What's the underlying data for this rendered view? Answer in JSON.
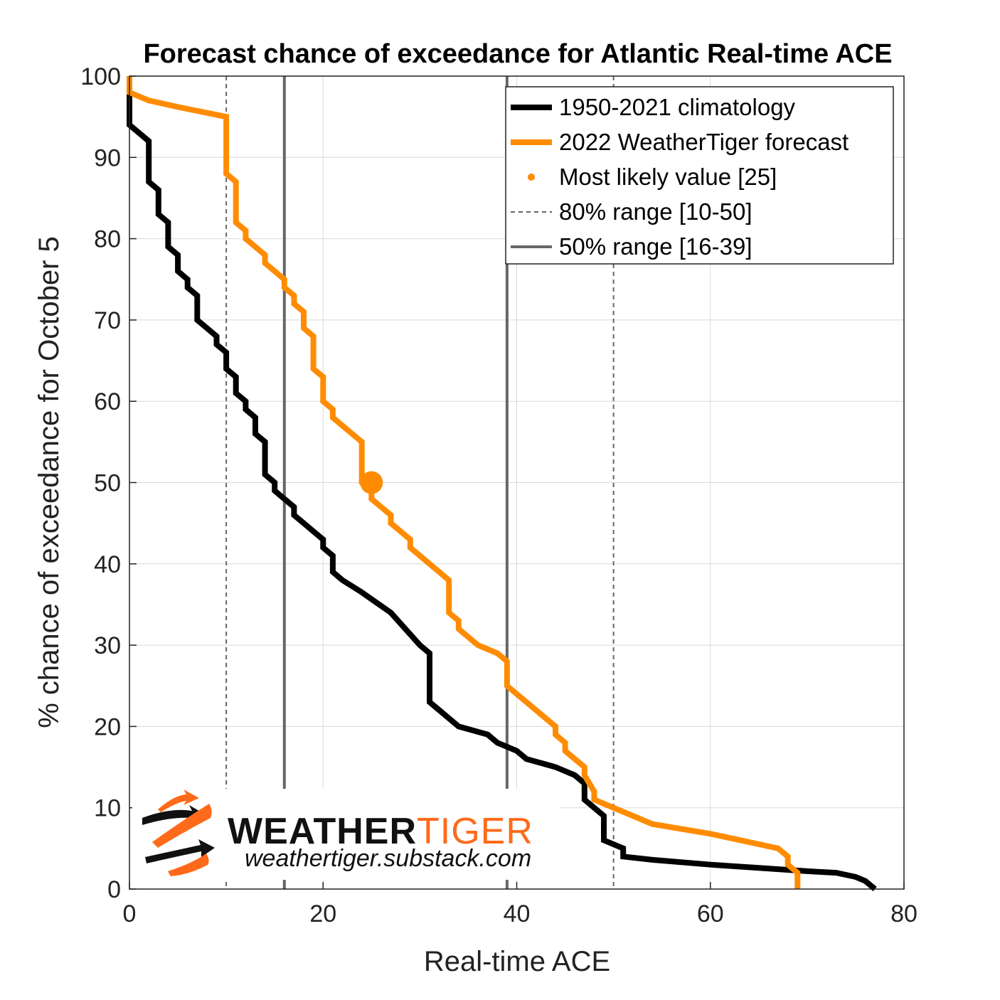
{
  "chart_data": {
    "type": "line",
    "title": "Forecast chance of exceedance for Atlantic Real-time ACE",
    "xlabel": "Real-time ACE",
    "ylabel": "% chance of exceedance for October 5",
    "xlim": [
      0,
      80
    ],
    "ylim": [
      0,
      100
    ],
    "xticks": [
      0,
      20,
      40,
      60,
      80
    ],
    "yticks": [
      0,
      10,
      20,
      30,
      40,
      50,
      60,
      70,
      80,
      90,
      100
    ],
    "grid": true,
    "legend_position": "top-right",
    "series": [
      {
        "name": "1950-2021 climatology",
        "color": "#000000",
        "points": [
          [
            0,
            98
          ],
          [
            0,
            94
          ],
          [
            1,
            93
          ],
          [
            2,
            92
          ],
          [
            2,
            87
          ],
          [
            3,
            86
          ],
          [
            3,
            83
          ],
          [
            4,
            82
          ],
          [
            4,
            79
          ],
          [
            5,
            78
          ],
          [
            5,
            76
          ],
          [
            6,
            75
          ],
          [
            6,
            74
          ],
          [
            7,
            73
          ],
          [
            7,
            70
          ],
          [
            8,
            69
          ],
          [
            9,
            68
          ],
          [
            9,
            67
          ],
          [
            10,
            66
          ],
          [
            10,
            64
          ],
          [
            11,
            63
          ],
          [
            11,
            61
          ],
          [
            12,
            60
          ],
          [
            12,
            59
          ],
          [
            13,
            58
          ],
          [
            13,
            56
          ],
          [
            14,
            55
          ],
          [
            14,
            51
          ],
          [
            15,
            50
          ],
          [
            15,
            49
          ],
          [
            16,
            48
          ],
          [
            17,
            47
          ],
          [
            17,
            46
          ],
          [
            18,
            45
          ],
          [
            19,
            44
          ],
          [
            20,
            43
          ],
          [
            20,
            42
          ],
          [
            21,
            41
          ],
          [
            21,
            39
          ],
          [
            22,
            38
          ],
          [
            24,
            36.5
          ],
          [
            27,
            34
          ],
          [
            30,
            30
          ],
          [
            31,
            29
          ],
          [
            31,
            23
          ],
          [
            32,
            22
          ],
          [
            34,
            20
          ],
          [
            37,
            19
          ],
          [
            38,
            18
          ],
          [
            40,
            17
          ],
          [
            41,
            16
          ],
          [
            44,
            15
          ],
          [
            46,
            14
          ],
          [
            47,
            13
          ],
          [
            47,
            11
          ],
          [
            48,
            10
          ],
          [
            49,
            9
          ],
          [
            49,
            6
          ],
          [
            50,
            5.5
          ],
          [
            51,
            5
          ],
          [
            51,
            4
          ],
          [
            54,
            3.6
          ],
          [
            60,
            3
          ],
          [
            65,
            2.6
          ],
          [
            70,
            2.2
          ],
          [
            73,
            2
          ],
          [
            75,
            1.5
          ],
          [
            76,
            1
          ],
          [
            77,
            0
          ]
        ]
      },
      {
        "name": "2022 WeatherTiger forecast",
        "color": "#FF8C00",
        "points": [
          [
            0,
            100
          ],
          [
            0,
            98
          ],
          [
            2,
            97
          ],
          [
            5,
            96.2
          ],
          [
            10,
            95
          ],
          [
            10,
            88
          ],
          [
            11,
            87
          ],
          [
            11,
            82
          ],
          [
            12,
            81
          ],
          [
            12,
            80
          ],
          [
            14,
            78
          ],
          [
            14,
            77
          ],
          [
            15,
            76
          ],
          [
            16,
            75
          ],
          [
            16,
            74
          ],
          [
            17,
            73
          ],
          [
            17,
            72
          ],
          [
            18,
            71
          ],
          [
            18,
            69
          ],
          [
            19,
            68
          ],
          [
            19,
            64
          ],
          [
            20,
            63
          ],
          [
            20,
            60
          ],
          [
            21,
            59
          ],
          [
            21,
            58
          ],
          [
            24,
            55
          ],
          [
            24,
            50
          ],
          [
            25,
            49
          ],
          [
            25,
            48
          ],
          [
            27,
            46
          ],
          [
            27,
            45
          ],
          [
            29,
            43
          ],
          [
            29,
            42
          ],
          [
            33,
            38
          ],
          [
            33,
            34
          ],
          [
            34,
            33
          ],
          [
            34,
            32
          ],
          [
            36,
            30
          ],
          [
            38,
            29
          ],
          [
            39,
            28
          ],
          [
            39,
            25
          ],
          [
            44,
            20
          ],
          [
            44,
            19
          ],
          [
            45,
            18
          ],
          [
            45,
            17
          ],
          [
            47,
            15
          ],
          [
            47,
            14
          ],
          [
            48,
            12
          ],
          [
            48,
            11
          ],
          [
            50,
            10
          ],
          [
            54,
            8
          ],
          [
            60,
            6.8
          ],
          [
            67,
            5
          ],
          [
            68,
            4
          ],
          [
            68,
            3
          ],
          [
            69,
            2
          ],
          [
            69,
            0
          ]
        ]
      }
    ],
    "most_likely": {
      "label": "Most likely value [25]",
      "x": 25,
      "y": 50,
      "color": "#FF8C00"
    },
    "range80": {
      "label": "80% range [10-50]",
      "values": [
        10,
        50
      ],
      "color": "#666666"
    },
    "range50": {
      "label": "50% range [16-39]",
      "values": [
        16,
        39
      ],
      "color": "#666666"
    },
    "legend": [
      "1950-2021 climatology",
      "2022 WeatherTiger forecast",
      "Most likely value [25]",
      "80% range [10-50]",
      "50% range [16-39]"
    ]
  },
  "logo": {
    "word_dark": "WEATHER",
    "word_orange": "TIGER",
    "url": "weathertiger.substack.com",
    "color_orange": "#FF6A1A"
  }
}
